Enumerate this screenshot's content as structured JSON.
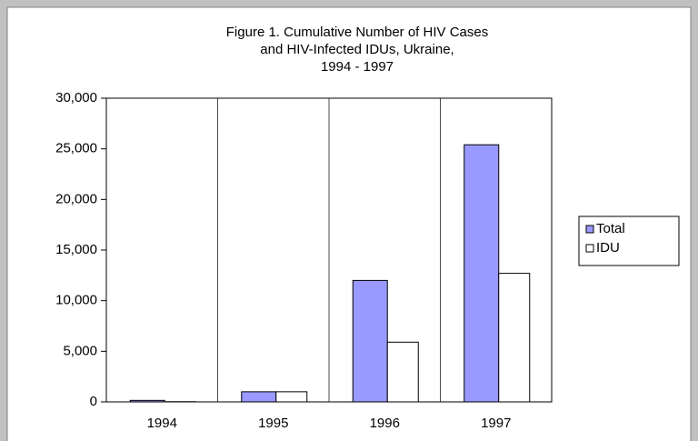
{
  "chart_data": {
    "type": "bar",
    "title": [
      "Figure 1. Cumulative Number of HIV Cases",
      "and HIV-Infected IDUs, Ukraine,",
      "1994 - 1997"
    ],
    "categories": [
      "1994",
      "1995",
      "1996",
      "1997"
    ],
    "series": [
      {
        "name": "Total",
        "color": "#9999ff",
        "values": [
          150,
          1000,
          12000,
          25400
        ]
      },
      {
        "name": "IDU",
        "color": "#ffffff",
        "values": [
          20,
          1000,
          5900,
          12700
        ]
      }
    ],
    "ylim": [
      0,
      30000
    ],
    "yticks": [
      0,
      {
        "value": 5000,
        "label": "5,000"
      },
      {
        "value": 10000,
        "label": "10,000"
      },
      {
        "value": 15000,
        "label": "15,000"
      },
      {
        "value": 20000,
        "label": "20,000"
      },
      {
        "value": 25000,
        "label": "25,000"
      },
      {
        "value": 30000,
        "label": "30,000"
      }
    ],
    "legend": "right"
  }
}
